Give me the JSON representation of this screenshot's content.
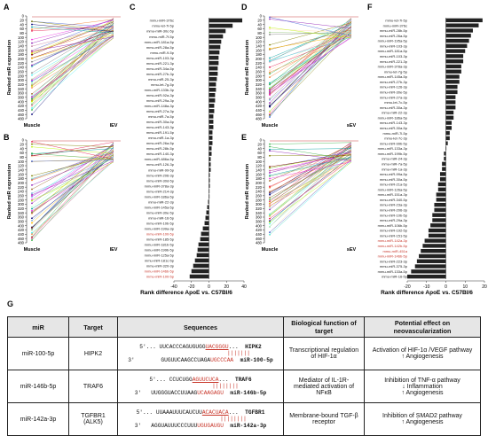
{
  "panels": {
    "A": {
      "letter": "A",
      "ylabel": "Ranked miR expression",
      "xcats": [
        "Muscle",
        "lEV"
      ]
    },
    "B": {
      "letter": "B",
      "ylabel": "Ranked miR expression",
      "xcats": [
        "Muscle",
        "lEV"
      ]
    },
    "D": {
      "letter": "D",
      "ylabel": "Ranked miR expression",
      "xcats": [
        "Muscle",
        "sEV"
      ]
    },
    "E": {
      "letter": "E",
      "ylabel": "Ranked miR expression",
      "xcats": [
        "Muscle",
        "sEV"
      ]
    },
    "C": {
      "letter": "C",
      "xlabel": "Rank difference ApoE vs. C57Bl/6",
      "ticks": [
        "-40",
        "-20",
        "0",
        "20",
        "40"
      ]
    },
    "F": {
      "letter": "F",
      "xlabel": "Rank difference ApoE vs. C57Bl/6",
      "ticks": [
        "-20",
        "-10",
        "0",
        "10",
        "20"
      ]
    },
    "yticks": [
      "0",
      "20",
      "40",
      "60",
      "80",
      "100",
      "120",
      "140",
      "160",
      "180",
      "200",
      "220",
      "240",
      "260",
      "280",
      "300",
      "320",
      "340",
      "360",
      "380",
      "400",
      "420",
      "440",
      "460",
      "480"
    ],
    "G": {
      "letter": "G"
    }
  },
  "chart_data": [
    {
      "type": "bar",
      "orientation": "horizontal",
      "panel": "C",
      "xlabel": "Rank difference ApoE vs. C57Bl/6",
      "xlim": [
        -40,
        40
      ],
      "categories": [
        "mmu-miR-376c",
        "mmu-let-7i-5p",
        "mmu-miR-30c-5p",
        "mmu-miR-7f-5p",
        "mmu-miR-181a-5p",
        "mmu-miR-28a-5p",
        "mmu-miR-9-5p",
        "mmu-miR-103-3p",
        "mmu-miR-221-3p",
        "mmu-miR-34a-5p",
        "mmu-miR-27b-3p",
        "mmu-miR-25-3p",
        "mmu-let-7g-5p",
        "mmu-miR-133b-3p",
        "mmu-miR-92a-3p",
        "mmu-miR-29a-3p",
        "mmu-miR-148a-3p",
        "mmu-miR-27a-3p",
        "mmu-miR-7a-5p",
        "mmu-miR-30a-5p",
        "mmu-miR-143-3p",
        "mmu-miR-191-5p",
        "mmu-miR-1a-3p",
        "mmu-miR-26a-5p",
        "mmu-miR-28b-5p",
        "mmu-miR-140-3p",
        "mmu-miR-486a-5p",
        "mmu-miR-126-3p",
        "mmu-miR-99-5p",
        "mmu-miR-206-3p",
        "mmu-miR-30d-5p",
        "mmu-miR-378a-3p",
        "mmu-miR-214-3p",
        "mmu-miR-186a-5p",
        "mmu-miR-22-3p",
        "mmu-miR-145a-5p",
        "mmu-miR-30e-5p",
        "mmu-miR-16-5p",
        "mmu-miR-10b-5p",
        "mmu-miR-199a-3p",
        "mmu-miR-100-5p",
        "mmu-miR-185-5p",
        "mmu-miR-181b-5p",
        "mmu-miR-199b-5p",
        "mmu-miR-125a-5p",
        "mmu-miR-181c-5p",
        "mmu-miR-320-3p",
        "mmu-miR-146b-5p",
        "mmu-miR-100-5p"
      ],
      "values": [
        38,
        27,
        19,
        16,
        14,
        13,
        12,
        11,
        11,
        10,
        10,
        9,
        8,
        8,
        7,
        7,
        6,
        6,
        5,
        5,
        5,
        4,
        4,
        4,
        3,
        3,
        2,
        2,
        2,
        1,
        1,
        1,
        0,
        0,
        -1,
        -2,
        -3,
        -4,
        -5,
        -7,
        -9,
        -10,
        -12,
        -13,
        -14,
        -16,
        -18,
        -20,
        -22
      ],
      "highlight": [
        "mmu-miR-146b-5p",
        "mmu-miR-100-5p"
      ]
    },
    {
      "type": "bar",
      "orientation": "horizontal",
      "panel": "F",
      "xlabel": "Rank difference ApoE vs. C57Bl/6",
      "xlim": [
        -20,
        20
      ],
      "categories": [
        "mmu-let-7i-5p",
        "mmu-miR-376c",
        "mmu-miR-28b-5p",
        "mmu-miR-26a-5p",
        "mmu-miR-195a-5p",
        "mmu-miR-103-3p",
        "mmu-miR-181a-5p",
        "mmu-miR-103-3p",
        "mmu-miR-221-3p",
        "mmu-miR-378a-3p",
        "mmu-let-7g-5p",
        "mmu-miR-145a-5p",
        "mmu-miR-27b-3p",
        "mmu-miR-126-3p",
        "mmu-miR-30e-5p",
        "mmu-miR-27a-3p",
        "mmu-let-7c-5p",
        "mmu-miR-30a-3p",
        "mmu-miR-22-3p",
        "mmu-miR-186a-5p",
        "mmu-miR-143-3p",
        "mmu-miR-30a-5p",
        "mmu-miR-7i-5p",
        "mmu-let-7c-3p",
        "mmu-miR-99b-5p",
        "mmu-miR-133a-3p",
        "mmu-miR-199b-5p",
        "mmu-miR-24-3p",
        "mmu-miR-7a-5p",
        "mmu-miR-1a-3p",
        "mmu-miR-99a-5p",
        "mmu-miR-30a-5p",
        "mmu-miR-21a-5p",
        "mmu-miR-126a-5p",
        "mmu-miR-151a-3p",
        "mmu-miR-340-5p",
        "mmu-miR-23a-3p",
        "mmu-miR-206-3p",
        "mmu-miR-10b-5p",
        "mmu-miR-29a-3p",
        "mmu-miR-106b-5p",
        "mmu-miR-192-5p",
        "mmu-miR-151-5p",
        "mmu-miR-142a-3p",
        "mmu-miR-142b-5p",
        "mmu-miR-451a",
        "mmu-miR-146b-5p",
        "mmu-miR-223-3p",
        "mmu-miR-375-3p",
        "mmu-miR-133a-5p",
        "mmu-miR-16-5p"
      ],
      "values": [
        19,
        17,
        14,
        13,
        12,
        11,
        10,
        9,
        9,
        8,
        8,
        7,
        7,
        6,
        6,
        5,
        5,
        5,
        4,
        4,
        3,
        3,
        2,
        2,
        1,
        0,
        -1,
        -1,
        -2,
        -2,
        -3,
        -3,
        -4,
        -4,
        -5,
        -5,
        -6,
        -6,
        -7,
        -7,
        -8,
        -9,
        -9,
        -11,
        -12,
        -13,
        -14,
        -15,
        -16,
        -18,
        -20
      ],
      "highlight": [
        "mmu-miR-142a-3p",
        "mmu-miR-142b-5p",
        "mmu-miR-451a",
        "mmu-miR-146b-5p"
      ]
    }
  ],
  "table": {
    "headers": [
      "miR",
      "Target",
      "Sequences",
      "Biological function of target",
      "Potential effect on neovascularization"
    ],
    "rows": [
      {
        "mir": "miR-100-5p",
        "target": "HIPK2",
        "seq_top_prefix": "5'... UUCACCCAGUGUGG",
        "seq_top_mid": "UACGGGU",
        "seq_top_suffix": "...",
        "seq_top_name": "HIPK2",
        "seq_bars": "|||||||",
        "seq_bot_prefix": "3'        GUGUUCAAGCCUAGA",
        "seq_bot_mid": "UGCCCAA",
        "seq_bot_name": "miR-100-5p",
        "function": "Transcriptional regulation of HIF-1α",
        "effect_line1": "Activation of HIF-1α /VEGF  pathway",
        "effect_line2": "↑ Angiogenesis"
      },
      {
        "mir": "miR-146b-5p",
        "target": "TRAF6",
        "seq_top_prefix": "5'... CCUCUGG",
        "seq_top_mid": "AGUUCUCA",
        "seq_top_suffix": "...",
        "seq_top_name": "TRAF6",
        "seq_bars": "||||||||",
        "seq_bot_prefix": "3'   UUGGGUACCUUAAG",
        "seq_bot_mid": "UCAAGAGU",
        "seq_bot_name": "miR-146b-5p",
        "function": "Mediator of IL-1R-mediated activation of NFκB",
        "effect_line1": "Inhibition of  TNF-α pathway",
        "effect_line2": "↓ Inflammation",
        "effect_line3": "↑ Angiogenesis"
      },
      {
        "mir": "miR-142a-3p",
        "target": "TGFBR1 (ALK5)",
        "seq_top_prefix": "5'... UUAAAUUUCAUCUU",
        "seq_top_mid": "ACACUACA",
        "seq_top_suffix": "...",
        "seq_top_name": "TGFBR1",
        "seq_bars": "||||||||",
        "seq_bot_prefix": "3'   AGGUAUUUCCCUUU",
        "seq_bot_mid": "UGUGAUGU",
        "seq_bot_name": "miR-142a-3p",
        "function": "Membrane-bound TGF-β receptor",
        "effect_line1": "Inhibition of SMAD2 pathway",
        "effect_line2": "↑ Angiogenesis"
      }
    ]
  }
}
